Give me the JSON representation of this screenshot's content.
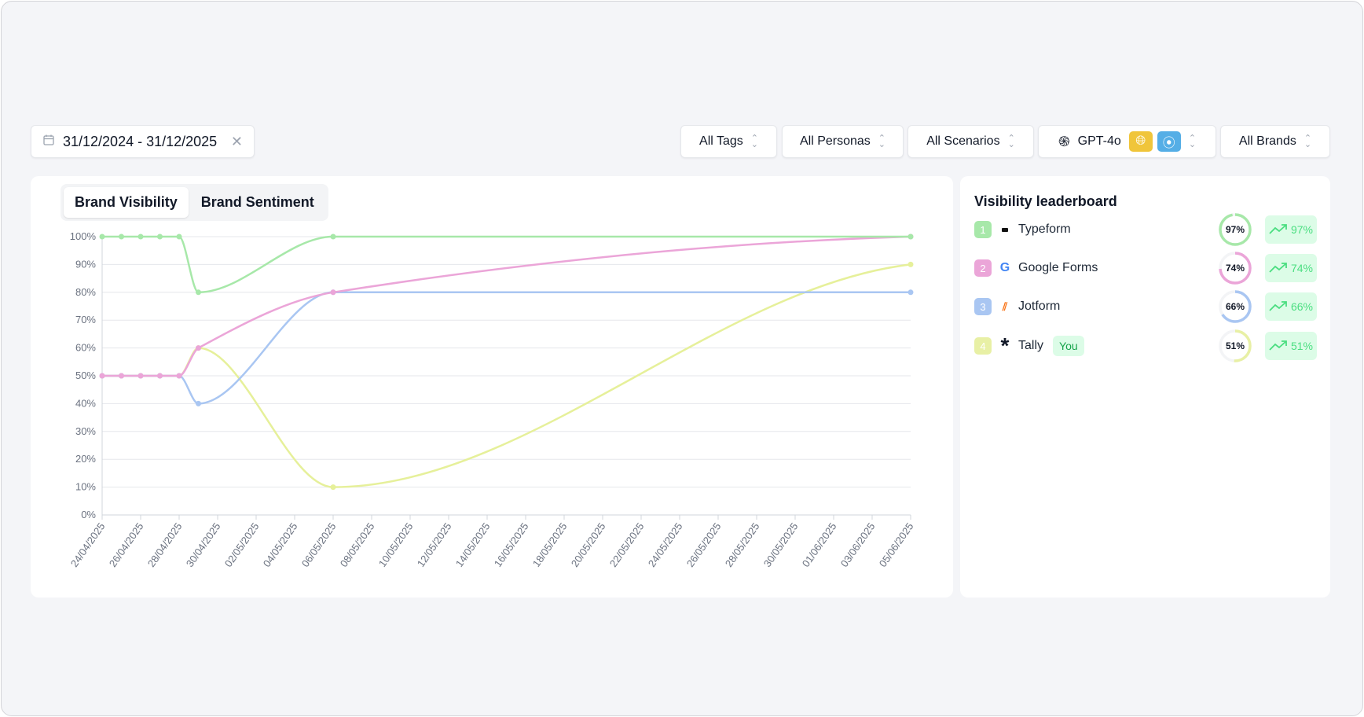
{
  "filters": {
    "date_range": "31/12/2024 - 31/12/2025",
    "tags": "All Tags",
    "personas": "All Personas",
    "scenarios": "All Scenarios",
    "model": "GPT-4o",
    "brands": "All Brands"
  },
  "tabs": [
    {
      "label": "Brand Visibility",
      "active": true
    },
    {
      "label": "Brand Sentiment",
      "active": false
    }
  ],
  "leaderboard": {
    "title": "Visibility leaderboard",
    "you_label": "You",
    "items": [
      {
        "rank": "1",
        "name": "Typeform",
        "score": "97%",
        "trend": "97%",
        "value": 97,
        "color": "#a7e8a9"
      },
      {
        "rank": "2",
        "name": "Google Forms",
        "score": "74%",
        "trend": "74%",
        "value": 74,
        "color": "#eba5d8"
      },
      {
        "rank": "3",
        "name": "Jotform",
        "score": "66%",
        "trend": "66%",
        "value": 66,
        "color": "#a9c6f2"
      },
      {
        "rank": "4",
        "name": "Tally",
        "score": "51%",
        "trend": "51%",
        "value": 51,
        "color": "#e8f0a5"
      }
    ]
  },
  "chart_data": {
    "type": "line",
    "ylim": [
      0,
      100
    ],
    "yticks": [
      "0%",
      "10%",
      "20%",
      "30%",
      "40%",
      "50%",
      "60%",
      "70%",
      "80%",
      "90%",
      "100%"
    ],
    "xticks": [
      "24/04/2025",
      "26/04/2025",
      "28/04/2025",
      "30/04/2025",
      "02/05/2025",
      "04/05/2025",
      "06/05/2025",
      "08/05/2025",
      "10/05/2025",
      "12/05/2025",
      "14/05/2025",
      "16/05/2025",
      "18/05/2025",
      "20/05/2025",
      "22/05/2025",
      "24/05/2025",
      "26/05/2025",
      "28/05/2025",
      "30/05/2025",
      "01/06/2025",
      "03/06/2025",
      "05/06/2025"
    ],
    "x_days": [
      0,
      1,
      2,
      3,
      4,
      5,
      12,
      42
    ],
    "x_dates": [
      "24/04/2025",
      "25/04/2025",
      "26/04/2025",
      "27/04/2025",
      "28/04/2025",
      "29/04/2025",
      "06/05/2025",
      "05/06/2025"
    ],
    "series": [
      {
        "name": "Tally",
        "color": "#e6f09a",
        "values": [
          50,
          50,
          50,
          50,
          50,
          60,
          10,
          90
        ]
      },
      {
        "name": "Jotform",
        "color": "#a9c6f2",
        "values": [
          50,
          50,
          50,
          50,
          50,
          40,
          80,
          80
        ]
      },
      {
        "name": "Google Forms",
        "color": "#eba5d8",
        "values": [
          50,
          50,
          50,
          50,
          50,
          60,
          80,
          100
        ]
      },
      {
        "name": "Typeform",
        "color": "#a7e8a9",
        "values": [
          100,
          100,
          100,
          100,
          100,
          80,
          100,
          100
        ]
      }
    ]
  }
}
